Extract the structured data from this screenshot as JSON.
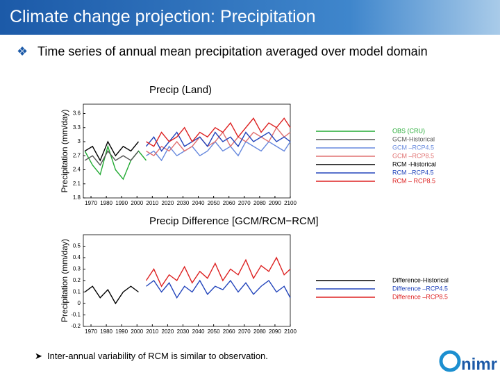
{
  "header": {
    "title": "Climate change projection: Precipitation"
  },
  "bullet": "Time series of annual mean precipitation averaged over model domain",
  "chart_data": [
    {
      "type": "line",
      "title": "Precip  (Land)",
      "y_label": "Precipitation (mm/day)",
      "xlim": [
        1965,
        2100
      ],
      "xticks": [
        1970,
        1980,
        1990,
        2000,
        2010,
        2020,
        2030,
        2040,
        2050,
        2060,
        2070,
        2080,
        2090,
        2100
      ],
      "ylim": [
        1.8,
        3.8
      ],
      "yticks": [
        1.8,
        2.1,
        2.4,
        2.7,
        3,
        3.3,
        3.6
      ],
      "legend": "right",
      "series": [
        {
          "name": "OBS (CRU)",
          "color": "#22aa33",
          "x": [
            1966,
            1971,
            1976,
            1981,
            1986,
            1991,
            1996,
            2001,
            2006
          ],
          "values": [
            2.8,
            2.5,
            2.3,
            2.9,
            2.4,
            2.2,
            2.6,
            2.8,
            2.6
          ]
        },
        {
          "name": "GCM-Historical",
          "color": "#555555",
          "x": [
            1966,
            1971,
            1976,
            1981,
            1986,
            1991,
            1996,
            2001
          ],
          "values": [
            2.6,
            2.7,
            2.5,
            2.8,
            2.6,
            2.7,
            2.6,
            2.8
          ]
        },
        {
          "name": "GCM –RCP4.5",
          "color": "#6688dd",
          "x": [
            2006,
            2011,
            2016,
            2021,
            2026,
            2031,
            2036,
            2041,
            2046,
            2051,
            2056,
            2061,
            2066,
            2071,
            2076,
            2081,
            2086,
            2091,
            2096,
            2100
          ],
          "values": [
            2.7,
            2.8,
            2.6,
            2.9,
            2.7,
            2.8,
            2.9,
            2.7,
            2.8,
            3.0,
            2.8,
            2.9,
            2.7,
            3.0,
            2.9,
            2.8,
            3.0,
            2.9,
            2.8,
            3.0
          ]
        },
        {
          "name": "GCM –RCP8.5",
          "color": "#e07070",
          "x": [
            2006,
            2011,
            2016,
            2021,
            2026,
            2031,
            2036,
            2041,
            2046,
            2051,
            2056,
            2061,
            2066,
            2071,
            2076,
            2081,
            2086,
            2091,
            2096,
            2100
          ],
          "values": [
            2.8,
            2.7,
            2.9,
            2.8,
            3.0,
            2.8,
            2.9,
            3.1,
            2.9,
            3.0,
            3.2,
            2.9,
            3.1,
            3.0,
            3.2,
            3.1,
            3.0,
            3.3,
            3.1,
            3.2
          ]
        },
        {
          "name": "RCM -Historical",
          "color": "#000000",
          "x": [
            1966,
            1971,
            1976,
            1981,
            1986,
            1991,
            1996,
            2001
          ],
          "values": [
            2.8,
            2.9,
            2.6,
            3.0,
            2.7,
            2.9,
            2.8,
            3.0
          ]
        },
        {
          "name": "RCM –RCP4.5",
          "color": "#2244bb",
          "x": [
            2006,
            2011,
            2016,
            2021,
            2026,
            2031,
            2036,
            2041,
            2046,
            2051,
            2056,
            2061,
            2066,
            2071,
            2076,
            2081,
            2086,
            2091,
            2096,
            2100
          ],
          "values": [
            2.9,
            3.1,
            2.8,
            3.0,
            3.2,
            2.9,
            3.0,
            3.1,
            2.9,
            3.2,
            3.0,
            3.1,
            2.9,
            3.2,
            3.0,
            3.1,
            3.2,
            3.0,
            3.1,
            3.0
          ]
        },
        {
          "name": "RCM – RCP8.5",
          "color": "#dd2222",
          "x": [
            2006,
            2011,
            2016,
            2021,
            2026,
            2031,
            2036,
            2041,
            2046,
            2051,
            2056,
            2061,
            2066,
            2071,
            2076,
            2081,
            2086,
            2091,
            2096,
            2100
          ],
          "values": [
            3.0,
            2.9,
            3.2,
            3.0,
            3.1,
            3.3,
            3.0,
            3.2,
            3.1,
            3.3,
            3.2,
            3.4,
            3.1,
            3.3,
            3.5,
            3.2,
            3.4,
            3.3,
            3.5,
            3.3
          ]
        }
      ]
    },
    {
      "type": "line",
      "title": "Precip  Difference  [GCM/RCM−RCM]",
      "y_label": "Precipitation (mm/day)",
      "xlim": [
        1965,
        2100
      ],
      "xticks": [
        1970,
        1980,
        1990,
        2000,
        2010,
        2020,
        2030,
        2040,
        2050,
        2060,
        2070,
        2080,
        2090,
        2100
      ],
      "ylim": [
        -0.2,
        0.6
      ],
      "yticks": [
        -0.2,
        -0.1,
        0,
        0.1,
        0.2,
        0.3,
        0.4,
        0.5
      ],
      "legend": "right",
      "series": [
        {
          "name": "Difference-Historical",
          "color": "#000000",
          "x": [
            1966,
            1971,
            1976,
            1981,
            1986,
            1991,
            1996,
            2001
          ],
          "values": [
            0.1,
            0.15,
            0.05,
            0.12,
            0.0,
            0.1,
            0.15,
            0.1
          ]
        },
        {
          "name": "Difference –RCP4.5",
          "color": "#2244bb",
          "x": [
            2006,
            2011,
            2016,
            2021,
            2026,
            2031,
            2036,
            2041,
            2046,
            2051,
            2056,
            2061,
            2066,
            2071,
            2076,
            2081,
            2086,
            2091,
            2096,
            2100
          ],
          "values": [
            0.15,
            0.2,
            0.1,
            0.18,
            0.05,
            0.15,
            0.1,
            0.2,
            0.08,
            0.15,
            0.12,
            0.2,
            0.1,
            0.18,
            0.08,
            0.15,
            0.2,
            0.1,
            0.15,
            0.05
          ]
        },
        {
          "name": "Difference –RCP8.5",
          "color": "#dd2222",
          "x": [
            2006,
            2011,
            2016,
            2021,
            2026,
            2031,
            2036,
            2041,
            2046,
            2051,
            2056,
            2061,
            2066,
            2071,
            2076,
            2081,
            2086,
            2091,
            2096,
            2100
          ],
          "values": [
            0.2,
            0.3,
            0.15,
            0.25,
            0.2,
            0.32,
            0.18,
            0.28,
            0.22,
            0.35,
            0.2,
            0.3,
            0.25,
            0.38,
            0.22,
            0.33,
            0.28,
            0.4,
            0.25,
            0.3
          ]
        }
      ]
    }
  ],
  "note": "Inter-annual variability of RCM is similar to observation.",
  "logo": "nimr"
}
